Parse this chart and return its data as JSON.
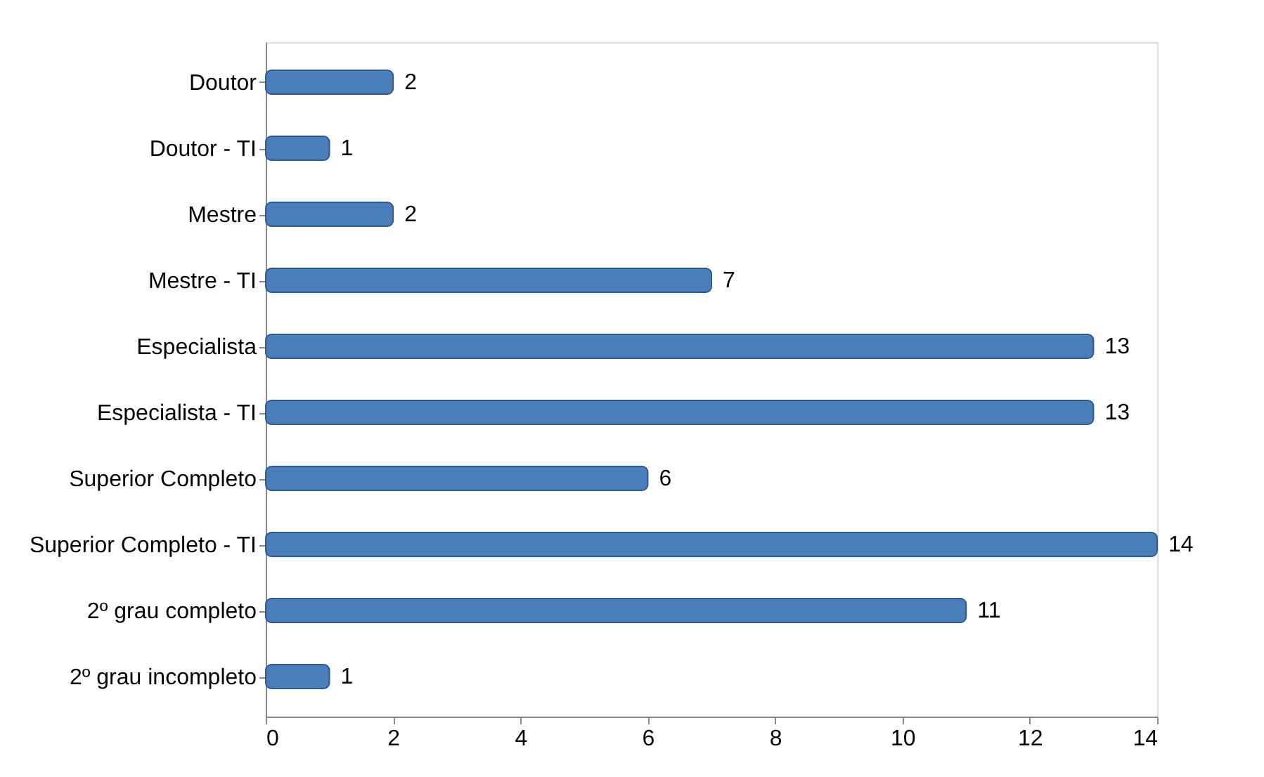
{
  "chart_data": {
    "type": "bar",
    "orientation": "horizontal",
    "categories": [
      "Doutor",
      "Doutor - TI",
      "Mestre",
      "Mestre - TI",
      "Especialista",
      "Especialista - TI",
      "Superior Completo",
      "Superior Completo - TI",
      "2º grau completo",
      "2º grau incompleto"
    ],
    "values": [
      2,
      1,
      2,
      7,
      13,
      13,
      6,
      14,
      11,
      1
    ],
    "color": "#4a7ebb",
    "xlim": [
      0,
      14
    ],
    "xticks": [
      0,
      2,
      4,
      6,
      8,
      10,
      12,
      14
    ],
    "data_labels": true,
    "grid": false
  }
}
